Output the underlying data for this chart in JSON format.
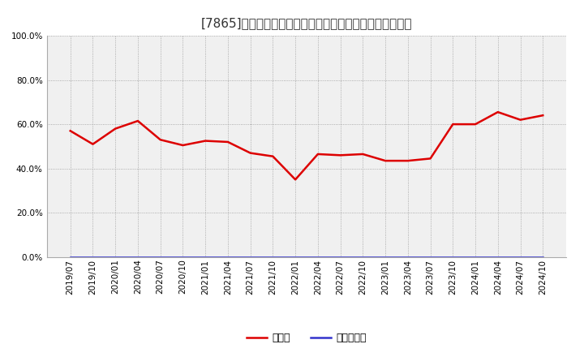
{
  "title": "[7865]　現頴金、有利子負債の総資産に対する比率の推移",
  "x_labels": [
    "2019/07",
    "2019/10",
    "2020/01",
    "2020/04",
    "2020/07",
    "2020/10",
    "2021/01",
    "2021/04",
    "2021/07",
    "2021/10",
    "2022/01",
    "2022/04",
    "2022/07",
    "2022/10",
    "2023/01",
    "2023/04",
    "2023/07",
    "2023/10",
    "2024/01",
    "2024/04",
    "2024/07",
    "2024/10"
  ],
  "cash_values": [
    0.57,
    0.51,
    0.58,
    0.615,
    0.53,
    0.505,
    0.525,
    0.52,
    0.47,
    0.455,
    0.35,
    0.465,
    0.46,
    0.465,
    0.435,
    0.435,
    0.445,
    0.6,
    0.6,
    0.655,
    0.62,
    0.64
  ],
  "debt_values": [
    0.0,
    0.0,
    0.0,
    0.0,
    0.0,
    0.0,
    0.0,
    0.0,
    0.0,
    0.0,
    0.0,
    0.0,
    0.0,
    0.0,
    0.0,
    0.0,
    0.0,
    0.0,
    0.0,
    0.0,
    0.0,
    0.0
  ],
  "cash_color": "#dd0000",
  "debt_color": "#3333cc",
  "cash_label": "現頴金",
  "debt_label": "有利子負債",
  "ylim_min": 0.0,
  "ylim_max": 1.0,
  "yticks": [
    0.0,
    0.2,
    0.4,
    0.6,
    0.8,
    1.0
  ],
  "bg_color": "#ffffff",
  "plot_bg_color": "#f0f0f0",
  "grid_color": "#999999",
  "title_color": "#333333",
  "title_fontsize": 11,
  "legend_fontsize": 9,
  "tick_fontsize": 7.5,
  "line_width": 1.8
}
